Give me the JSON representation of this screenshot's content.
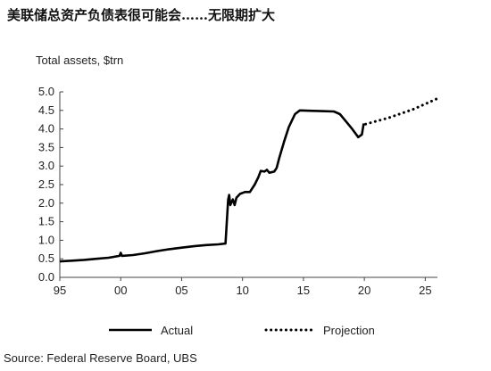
{
  "header": {
    "title": "美联储总资产负债表很可能会……无限期扩大"
  },
  "footer": {
    "source": "Source:  Federal Reserve Board, UBS"
  },
  "chart_data": {
    "type": "line",
    "title": "",
    "ylabel": "Total assets, $trn",
    "xlabel": "",
    "xlim": [
      1995,
      2026
    ],
    "ylim": [
      0,
      5
    ],
    "x_ticks": [
      1995,
      2000,
      2005,
      2010,
      2015,
      2020,
      2025
    ],
    "x_tick_labels": [
      "95",
      "00",
      "05",
      "10",
      "15",
      "20",
      "25"
    ],
    "y_ticks": [
      0,
      0.5,
      1.0,
      1.5,
      2.0,
      2.5,
      3.0,
      3.5,
      4.0,
      4.5,
      5.0
    ],
    "y_tick_labels": [
      "0.0",
      "0.5",
      "1.0",
      "1.5",
      "2.0",
      "2.5",
      "3.0",
      "3.5",
      "4.0",
      "4.5",
      "5.0"
    ],
    "grid": false,
    "legend_position": "bottom",
    "series": [
      {
        "name": "Actual",
        "style": "solid",
        "color": "#000000",
        "points": [
          [
            1995.0,
            0.43
          ],
          [
            1996.0,
            0.45
          ],
          [
            1997.0,
            0.47
          ],
          [
            1998.0,
            0.5
          ],
          [
            1999.0,
            0.53
          ],
          [
            1999.9,
            0.58
          ],
          [
            2000.0,
            0.66
          ],
          [
            2000.1,
            0.58
          ],
          [
            2001.0,
            0.6
          ],
          [
            2002.0,
            0.65
          ],
          [
            2003.0,
            0.71
          ],
          [
            2004.0,
            0.76
          ],
          [
            2005.0,
            0.8
          ],
          [
            2006.0,
            0.84
          ],
          [
            2007.0,
            0.87
          ],
          [
            2008.0,
            0.89
          ],
          [
            2008.6,
            0.91
          ],
          [
            2008.72,
            1.55
          ],
          [
            2008.82,
            2.1
          ],
          [
            2008.9,
            2.22
          ],
          [
            2009.0,
            1.95
          ],
          [
            2009.2,
            2.1
          ],
          [
            2009.35,
            1.95
          ],
          [
            2009.5,
            2.15
          ],
          [
            2009.8,
            2.25
          ],
          [
            2010.2,
            2.3
          ],
          [
            2010.6,
            2.3
          ],
          [
            2011.0,
            2.5
          ],
          [
            2011.3,
            2.7
          ],
          [
            2011.5,
            2.87
          ],
          [
            2011.8,
            2.85
          ],
          [
            2012.0,
            2.9
          ],
          [
            2012.2,
            2.82
          ],
          [
            2012.6,
            2.85
          ],
          [
            2012.8,
            2.95
          ],
          [
            2013.0,
            3.2
          ],
          [
            2013.4,
            3.65
          ],
          [
            2013.8,
            4.05
          ],
          [
            2014.3,
            4.4
          ],
          [
            2014.7,
            4.5
          ],
          [
            2015.5,
            4.49
          ],
          [
            2016.5,
            4.48
          ],
          [
            2017.5,
            4.47
          ],
          [
            2018.0,
            4.4
          ],
          [
            2018.5,
            4.2
          ],
          [
            2019.0,
            4.0
          ],
          [
            2019.5,
            3.78
          ],
          [
            2019.8,
            3.85
          ],
          [
            2019.95,
            4.15
          ]
        ]
      },
      {
        "name": "Projection",
        "style": "dotted",
        "color": "#000000",
        "points": [
          [
            2020.1,
            4.13
          ],
          [
            2022.0,
            4.3
          ],
          [
            2024.0,
            4.53
          ],
          [
            2026.0,
            4.82
          ]
        ]
      }
    ]
  }
}
